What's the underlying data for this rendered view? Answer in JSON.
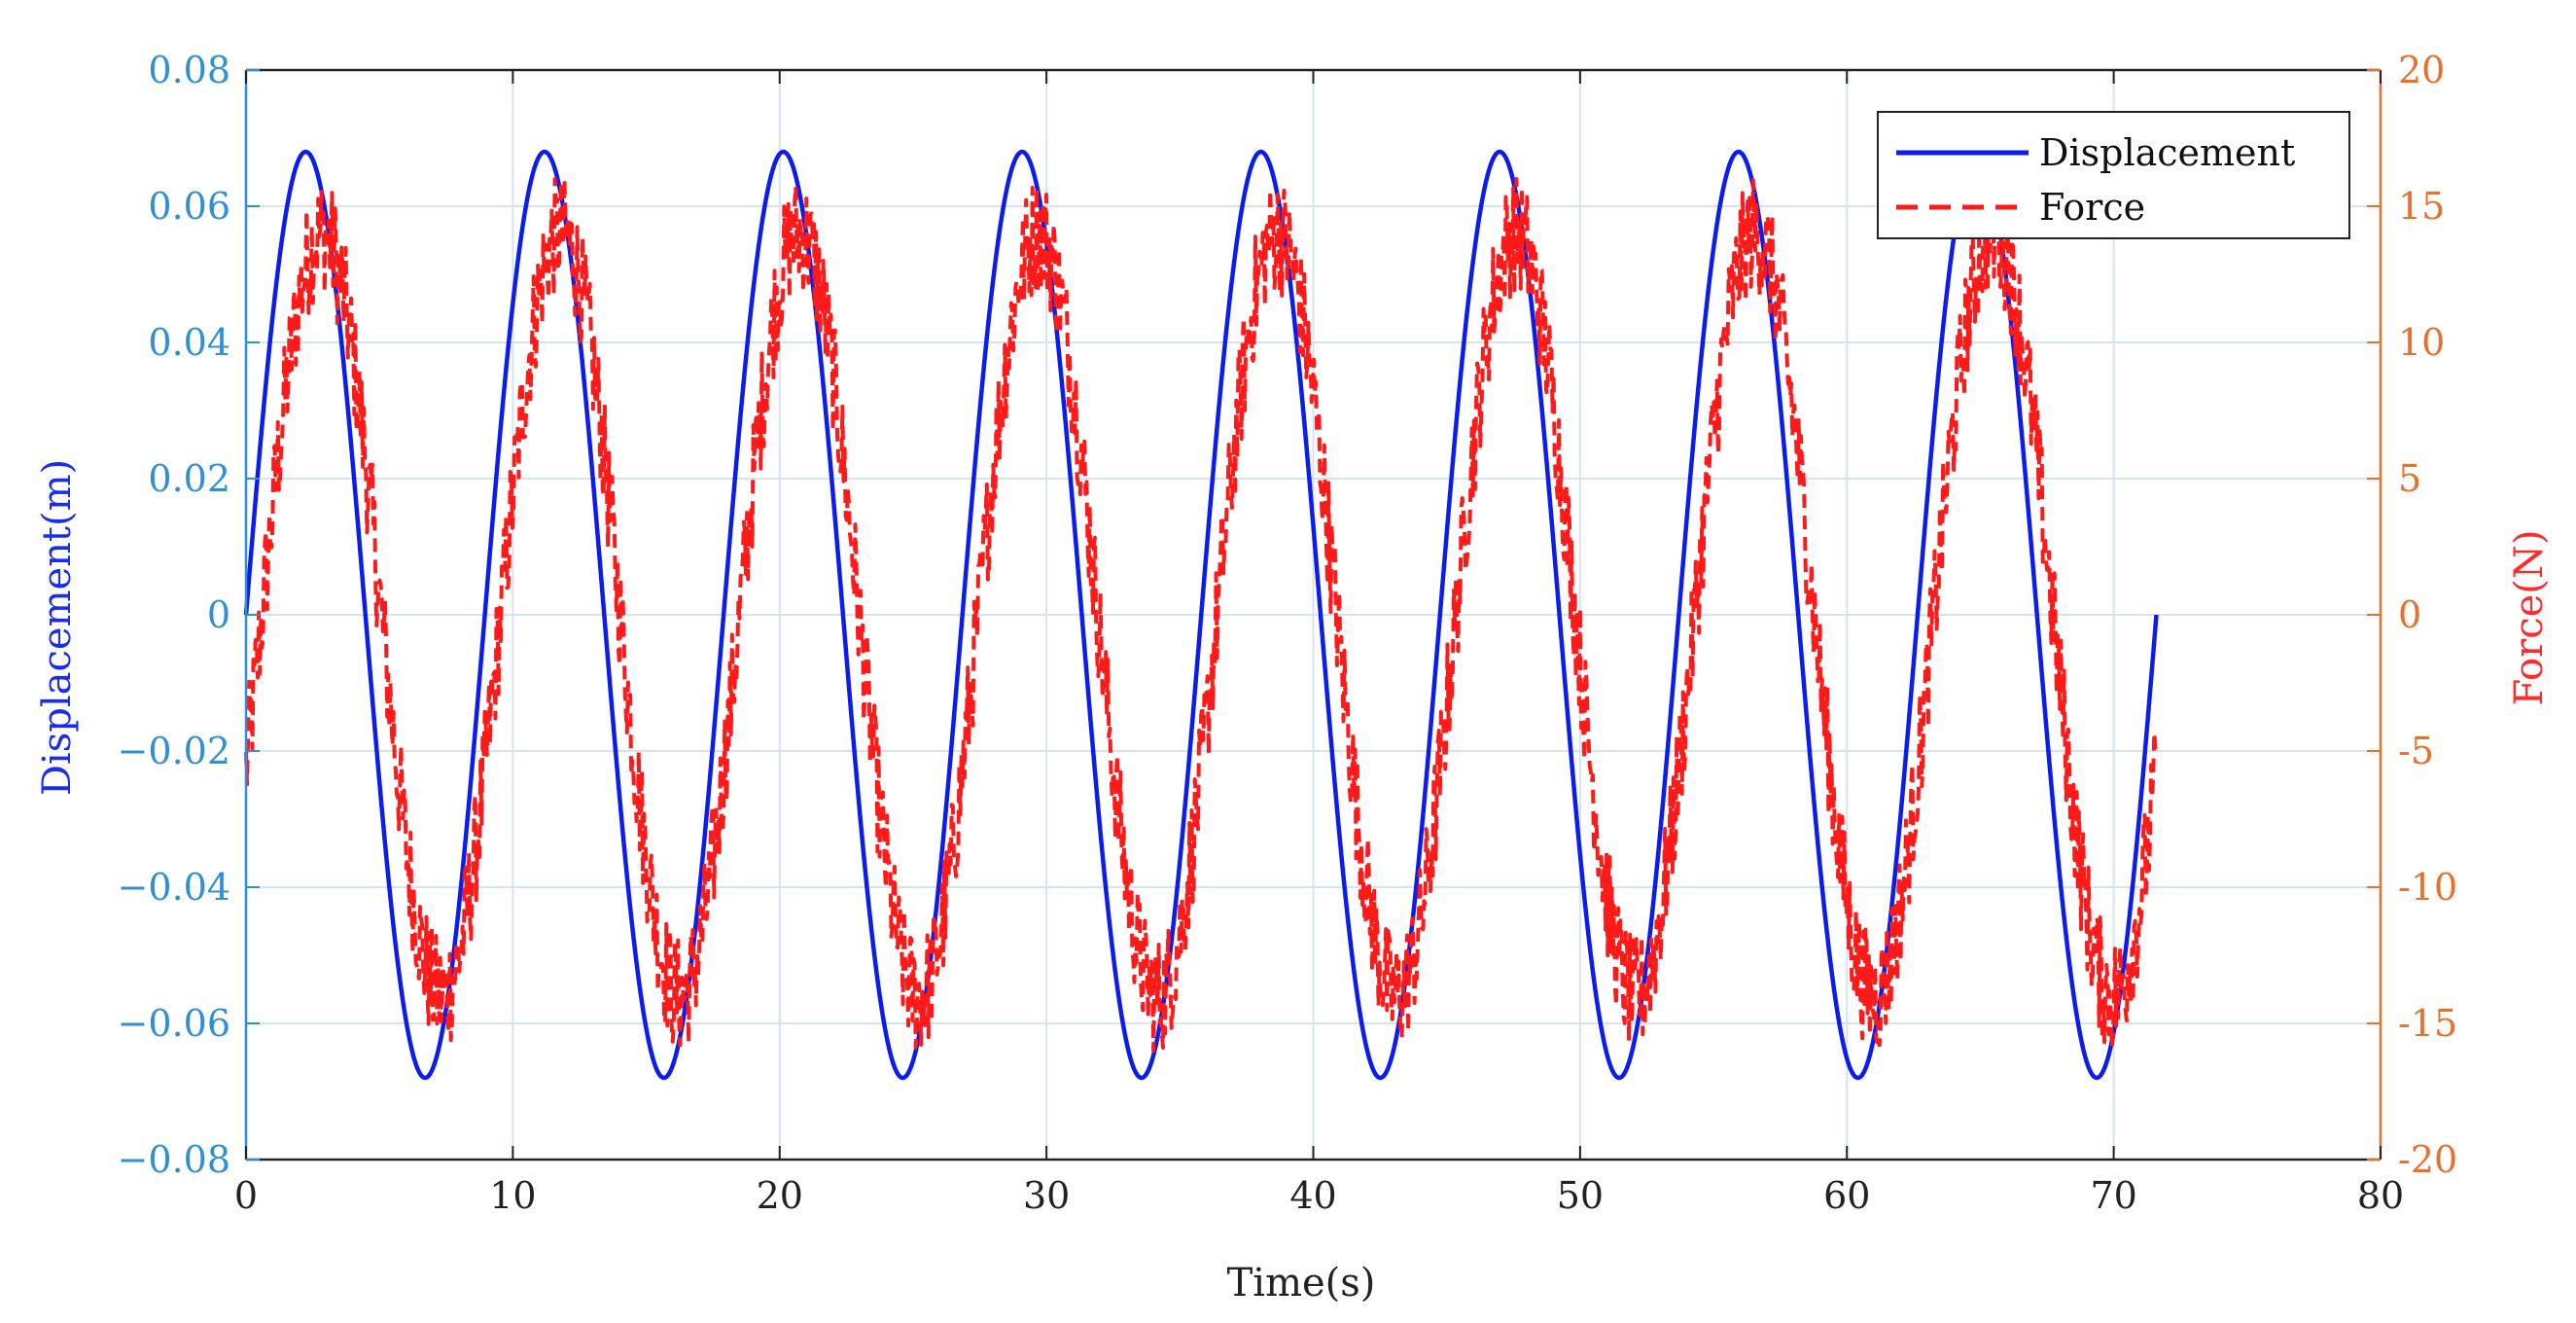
{
  "chart_data": {
    "type": "line",
    "title": "",
    "xlabel": "Time(s)",
    "ylabel": "Displacement(m)",
    "ylabel_right": "Force(N)",
    "xlim": [
      0,
      80
    ],
    "ylim": [
      -0.08,
      0.08
    ],
    "ylim_right": [
      -20,
      20
    ],
    "grid": true,
    "legend_position": "top-right",
    "x_ticks": [
      0,
      10,
      20,
      30,
      40,
      50,
      60,
      70,
      80
    ],
    "x_tick_labels": [
      "0",
      "10",
      "20",
      "30",
      "40",
      "50",
      "60",
      "70",
      "80"
    ],
    "y_ticks": [
      -0.08,
      -0.06,
      -0.04,
      -0.02,
      0,
      0.02,
      0.04,
      0.06,
      0.08
    ],
    "y_tick_labels": [
      "−0.08",
      "−0.06",
      "−0.04",
      "−0.02",
      "0",
      "0.02",
      "0.04",
      "0.06",
      "0.08"
    ],
    "y_right_ticks": [
      -20,
      -15,
      -10,
      -5,
      0,
      5,
      10,
      15,
      20
    ],
    "y_right_tick_labels": [
      "-20",
      "-15",
      "-10",
      "-5",
      "0",
      "5",
      "10",
      "15",
      "20"
    ],
    "series": [
      {
        "name": "Displacement",
        "axis": "left",
        "color": "#0b1cf0",
        "line_style": "solid",
        "description": "sinusoid x(t) = amplitude * sin(2*pi*t/period)",
        "amplitude": 0.068,
        "period": 8.95,
        "t_start": 0,
        "t_end": 71.6
      },
      {
        "name": "Force",
        "axis": "right",
        "color": "#ff1a1a",
        "line_style": "dashed",
        "description": "noisy sinusoid lagging displacement, offset -5 N at start",
        "amplitude": 14,
        "period": 8.95,
        "phase_lag_s": 0.6,
        "noise_amplitude": 2.2,
        "t_start": 0,
        "t_end": 71.6,
        "samples": [
          {
            "t": 0,
            "y": -5
          },
          {
            "t": 2.6,
            "y": 15.5
          },
          {
            "t": 7.4,
            "y": -15
          },
          {
            "t": 11.6,
            "y": 15
          },
          {
            "t": 16.2,
            "y": -15
          },
          {
            "t": 20.6,
            "y": 15.5
          },
          {
            "t": 25.0,
            "y": -15
          },
          {
            "t": 29.5,
            "y": 15
          },
          {
            "t": 33.8,
            "y": -15
          },
          {
            "t": 38.4,
            "y": 15
          },
          {
            "t": 42.8,
            "y": -14.5
          },
          {
            "t": 47.3,
            "y": 15.5
          },
          {
            "t": 51.8,
            "y": -15
          },
          {
            "t": 56.3,
            "y": 15.5
          },
          {
            "t": 60.7,
            "y": -15
          },
          {
            "t": 65.3,
            "y": 14
          },
          {
            "t": 69.6,
            "y": -15.5
          },
          {
            "t": 71.6,
            "y": -5
          }
        ]
      }
    ],
    "colors": {
      "left_axis": "#2e8fd6",
      "left_title": "#1a2cf0",
      "right_axis": "#e8702a",
      "right_title": "#ff2a2a",
      "grid": "#d6e4f2",
      "x_axis": "#222222"
    }
  }
}
